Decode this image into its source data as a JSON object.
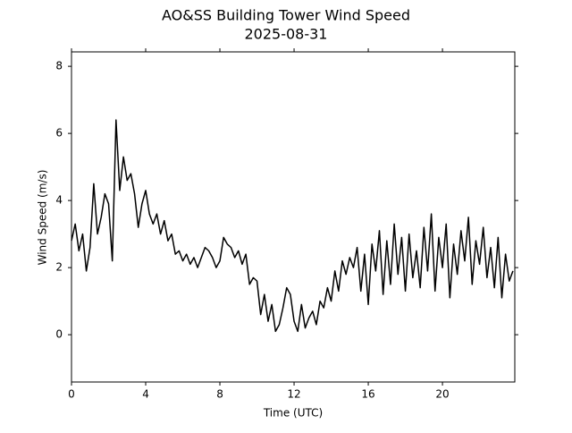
{
  "chart_data": {
    "type": "line",
    "title": "AO&SS Building Tower Wind Speed",
    "subtitle": "2025-08-31",
    "x_label": "Time (UTC)",
    "y_label": "Wind Speed (m/s)",
    "x": [
      0.0,
      0.2,
      0.4,
      0.6,
      0.8,
      1.0,
      1.2,
      1.4,
      1.6,
      1.8,
      2.0,
      2.2,
      2.4,
      2.6,
      2.8,
      3.0,
      3.2,
      3.4,
      3.6,
      3.8,
      4.0,
      4.2,
      4.4,
      4.6,
      4.8,
      5.0,
      5.2,
      5.4,
      5.6,
      5.8,
      6.0,
      6.2,
      6.4,
      6.6,
      6.8,
      7.0,
      7.2,
      7.4,
      7.6,
      7.8,
      8.0,
      8.2,
      8.4,
      8.6,
      8.8,
      9.0,
      9.2,
      9.4,
      9.6,
      9.8,
      10.0,
      10.2,
      10.4,
      10.6,
      10.8,
      11.0,
      11.2,
      11.4,
      11.6,
      11.8,
      12.0,
      12.2,
      12.4,
      12.6,
      12.8,
      13.0,
      13.2,
      13.4,
      13.6,
      13.8,
      14.0,
      14.2,
      14.4,
      14.6,
      14.8,
      15.0,
      15.2,
      15.4,
      15.6,
      15.8,
      16.0,
      16.2,
      16.4,
      16.6,
      16.8,
      17.0,
      17.2,
      17.4,
      17.6,
      17.8,
      18.0,
      18.2,
      18.4,
      18.6,
      18.8,
      19.0,
      19.2,
      19.4,
      19.6,
      19.8,
      20.0,
      20.2,
      20.4,
      20.6,
      20.8,
      21.0,
      21.2,
      21.4,
      21.6,
      21.8,
      22.0,
      22.2,
      22.4,
      22.6,
      22.8,
      23.0,
      23.2,
      23.4,
      23.6,
      23.8
    ],
    "series": [
      {
        "name": "Wind Speed",
        "color": "#000000",
        "values": [
          2.8,
          3.3,
          2.5,
          3.0,
          1.9,
          2.6,
          4.5,
          3.0,
          3.5,
          4.2,
          3.9,
          2.2,
          6.4,
          4.3,
          5.3,
          4.6,
          4.8,
          4.2,
          3.2,
          3.9,
          4.3,
          3.6,
          3.3,
          3.6,
          3.0,
          3.4,
          2.8,
          3.0,
          2.4,
          2.5,
          2.2,
          2.4,
          2.1,
          2.3,
          2.0,
          2.3,
          2.6,
          2.5,
          2.3,
          2.0,
          2.2,
          2.9,
          2.7,
          2.6,
          2.3,
          2.5,
          2.1,
          2.4,
          1.5,
          1.7,
          1.6,
          0.6,
          1.2,
          0.4,
          0.9,
          0.1,
          0.3,
          0.8,
          1.4,
          1.2,
          0.4,
          0.1,
          0.9,
          0.2,
          0.5,
          0.7,
          0.3,
          1.0,
          0.8,
          1.4,
          1.0,
          1.9,
          1.3,
          2.2,
          1.8,
          2.3,
          2.0,
          2.6,
          1.3,
          2.4,
          0.9,
          2.7,
          1.9,
          3.1,
          1.2,
          2.8,
          1.5,
          3.3,
          1.8,
          2.9,
          1.3,
          3.0,
          1.7,
          2.5,
          1.4,
          3.2,
          1.9,
          3.6,
          1.3,
          2.9,
          2.0,
          3.3,
          1.1,
          2.7,
          1.8,
          3.1,
          2.2,
          3.5,
          1.5,
          2.8,
          2.1,
          3.2,
          1.7,
          2.6,
          1.4,
          2.9,
          1.1,
          2.4,
          1.6,
          1.9
        ]
      }
    ],
    "xlim": [
      0,
      23.9
    ],
    "ylim": [
      -1.41,
      8.43
    ],
    "xticks": [
      0,
      4,
      8,
      12,
      16,
      20
    ],
    "yticks": [
      0,
      2,
      4,
      6,
      8
    ],
    "grid": false
  }
}
